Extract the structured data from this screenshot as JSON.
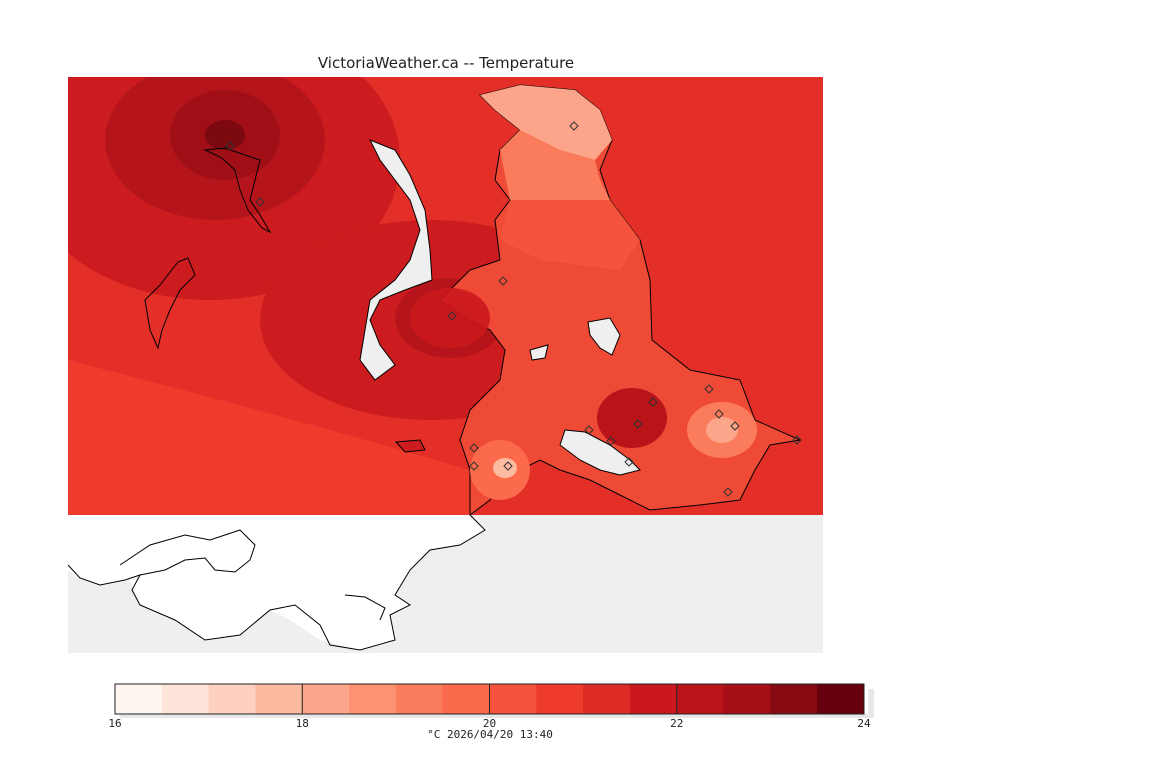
{
  "header": {
    "title": "VictoriaWeather.ca -- Temperature"
  },
  "map": {
    "variable": "Temperature",
    "units": "°C",
    "timestamp": "2026/04/20 13:40",
    "warm_spots": [
      "northwest inlet",
      "central peninsula",
      "southeast near harbour"
    ],
    "cool_spots": [
      "northeast point",
      "harbour entrance",
      "eastern shore"
    ]
  },
  "colorbar": {
    "min": 16,
    "max": 24,
    "step": 0.5,
    "tick_labels": [
      "16",
      "18",
      "20",
      "22",
      "24"
    ],
    "caption": "°C  2026/04/20 13:40",
    "colors": [
      "#fff5f0",
      "#fee4d9",
      "#fdd0c0",
      "#fcbba1",
      "#fca58a",
      "#fc9272",
      "#fb7c5c",
      "#fb6a4a",
      "#f5533b",
      "#ef3b2c",
      "#dc2c25",
      "#cb181d",
      "#b8141a",
      "#a50f15",
      "#880a12",
      "#67000d"
    ]
  }
}
